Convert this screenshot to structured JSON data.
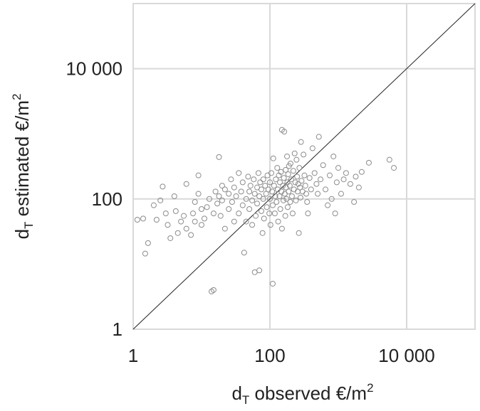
{
  "chart_data": {
    "type": "scatter",
    "x_label": {
      "main": "d",
      "sub": "T",
      "rest": " observed €/m",
      "sup": "2"
    },
    "y_label": {
      "main": "d",
      "sub": "T",
      "rest": " estimated  €/m",
      "sup": "2"
    },
    "log_x": true,
    "log_y": true,
    "grid": true,
    "color": "#8c8c8c",
    "xlim": [
      1,
      100000
    ],
    "ylim": [
      1,
      100000
    ],
    "xticks": [
      1,
      100,
      {
        "value": 10000,
        "label": "10 000"
      }
    ],
    "yticks": [
      1,
      100,
      {
        "value": 10000,
        "label": "10 000"
      }
    ],
    "x": [
      1.15,
      1.4,
      1.5,
      1.65,
      2.2,
      2.0,
      2.5,
      2.7,
      3,
      3.2,
      3.5,
      4,
      4.2,
      4.5,
      5,
      5.5,
      6,
      6,
      7,
      7.5,
      8,
      8,
      9,
      9,
      10,
      10,
      11,
      12,
      13,
      14,
      15,
      15,
      16,
      17,
      18,
      18,
      19,
      20,
      20,
      22,
      22,
      25,
      25,
      27,
      28,
      30,
      30,
      32,
      35,
      35,
      38,
      40,
      40,
      42,
      45,
      45,
      48,
      50,
      50,
      52,
      55,
      55,
      58,
      60,
      60,
      62,
      65,
      65,
      68,
      70,
      70,
      72,
      75,
      75,
      78,
      80,
      80,
      82,
      85,
      88,
      90,
      92,
      95,
      98,
      100,
      100,
      102,
      105,
      108,
      110,
      110,
      112,
      115,
      118,
      120,
      122,
      125,
      128,
      130,
      132,
      135,
      138,
      140,
      142,
      145,
      148,
      150,
      150,
      155,
      158,
      160,
      162,
      165,
      168,
      170,
      172,
      175,
      178,
      180,
      182,
      185,
      188,
      190,
      195,
      198,
      200,
      205,
      210,
      215,
      220,
      225,
      230,
      235,
      240,
      245,
      250,
      255,
      260,
      265,
      270,
      275,
      280,
      285,
      290,
      300,
      310,
      320,
      330,
      340,
      350,
      360,
      380,
      400,
      420,
      450,
      480,
      500,
      520,
      550,
      600,
      650,
      700,
      750,
      800,
      850,
      900,
      950,
      1000,
      1100,
      1200,
      1300,
      1500,
      1700,
      1800,
      2000,
      2200,
      2800,
      5600,
      6500
    ],
    "y": [
      48,
      50,
      14.5,
      21,
      48,
      80,
      95,
      155,
      60,
      40,
      25,
      110,
      65,
      30,
      45,
      55,
      170,
      35,
      28,
      60,
      90,
      45,
      120,
      230,
      40,
      70,
      50,
      75,
      100,
      3.8,
      4,
      60,
      130,
      85,
      440,
      110,
      55,
      95,
      160,
      35,
      140,
      70,
      120,
      200,
      90,
      45,
      150,
      110,
      60,
      250,
      130,
      80,
      180,
      15,
      100,
      45,
      220,
      130,
      70,
      160,
      40,
      95,
      200,
      120,
      7.5,
      55,
      150,
      85,
      250,
      110,
      8,
      180,
      65,
      140,
      30,
      100,
      200,
      50,
      160,
      120,
      75,
      230,
      140,
      60,
      180,
      100,
      40,
      250,
      130,
      5,
      80,
      420,
      160,
      60,
      110,
      200,
      90,
      300,
      140,
      45,
      230,
      110,
      180,
      70,
      260,
      130,
      35,
      1150,
      160,
      95,
      210,
      1080,
      120,
      55,
      280,
      150,
      100,
      450,
      180,
      75,
      240,
      130,
      320,
      160,
      90,
      350,
      200,
      110,
      60,
      270,
      140,
      500,
      180,
      95,
      400,
      220,
      130,
      170,
      30,
      300,
      150,
      105,
      750,
      190,
      130,
      480,
      230,
      160,
      120,
      90,
      60,
      210,
      140,
      600,
      250,
      170,
      120,
      900,
      200,
      330,
      140,
      80,
      230,
      100,
      450,
      60,
      180,
      300,
      120,
      200,
      250,
      170,
      90,
      220,
      150,
      260,
      360,
      400,
      300
    ]
  }
}
